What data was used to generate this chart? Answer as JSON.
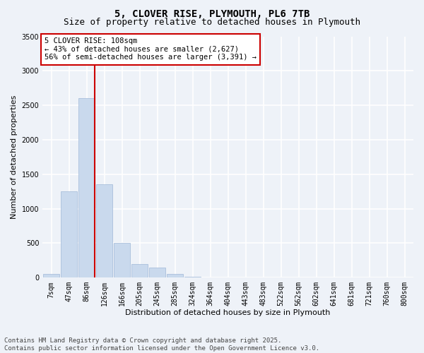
{
  "title_line1": "5, CLOVER RISE, PLYMOUTH, PL6 7TB",
  "title_line2": "Size of property relative to detached houses in Plymouth",
  "xlabel": "Distribution of detached houses by size in Plymouth",
  "ylabel": "Number of detached properties",
  "categories": [
    "7sqm",
    "47sqm",
    "86sqm",
    "126sqm",
    "166sqm",
    "205sqm",
    "245sqm",
    "285sqm",
    "324sqm",
    "364sqm",
    "404sqm",
    "443sqm",
    "483sqm",
    "522sqm",
    "562sqm",
    "602sqm",
    "641sqm",
    "681sqm",
    "721sqm",
    "760sqm",
    "800sqm"
  ],
  "values": [
    50,
    1250,
    2600,
    1350,
    500,
    200,
    150,
    55,
    15,
    5,
    2,
    0,
    0,
    0,
    0,
    0,
    0,
    0,
    0,
    0,
    0
  ],
  "bar_color": "#c9d9ed",
  "bar_edge_color": "#a0b8d8",
  "vline_color": "#cc0000",
  "ylim": [
    0,
    3500
  ],
  "yticks": [
    0,
    500,
    1000,
    1500,
    2000,
    2500,
    3000,
    3500
  ],
  "annotation_line1": "5 CLOVER RISE: 108sqm",
  "annotation_line2": "← 43% of detached houses are smaller (2,627)",
  "annotation_line3": "56% of semi-detached houses are larger (3,391) →",
  "annotation_box_color": "#ffffff",
  "annotation_box_edge": "#cc0000",
  "footer_line1": "Contains HM Land Registry data © Crown copyright and database right 2025.",
  "footer_line2": "Contains public sector information licensed under the Open Government Licence v3.0.",
  "bg_color": "#eef2f8",
  "plot_bg_color": "#eef2f8",
  "grid_color": "#ffffff",
  "title_fontsize": 10,
  "subtitle_fontsize": 9,
  "axis_label_fontsize": 8,
  "tick_fontsize": 7,
  "annotation_fontsize": 7.5,
  "footer_fontsize": 6.5
}
